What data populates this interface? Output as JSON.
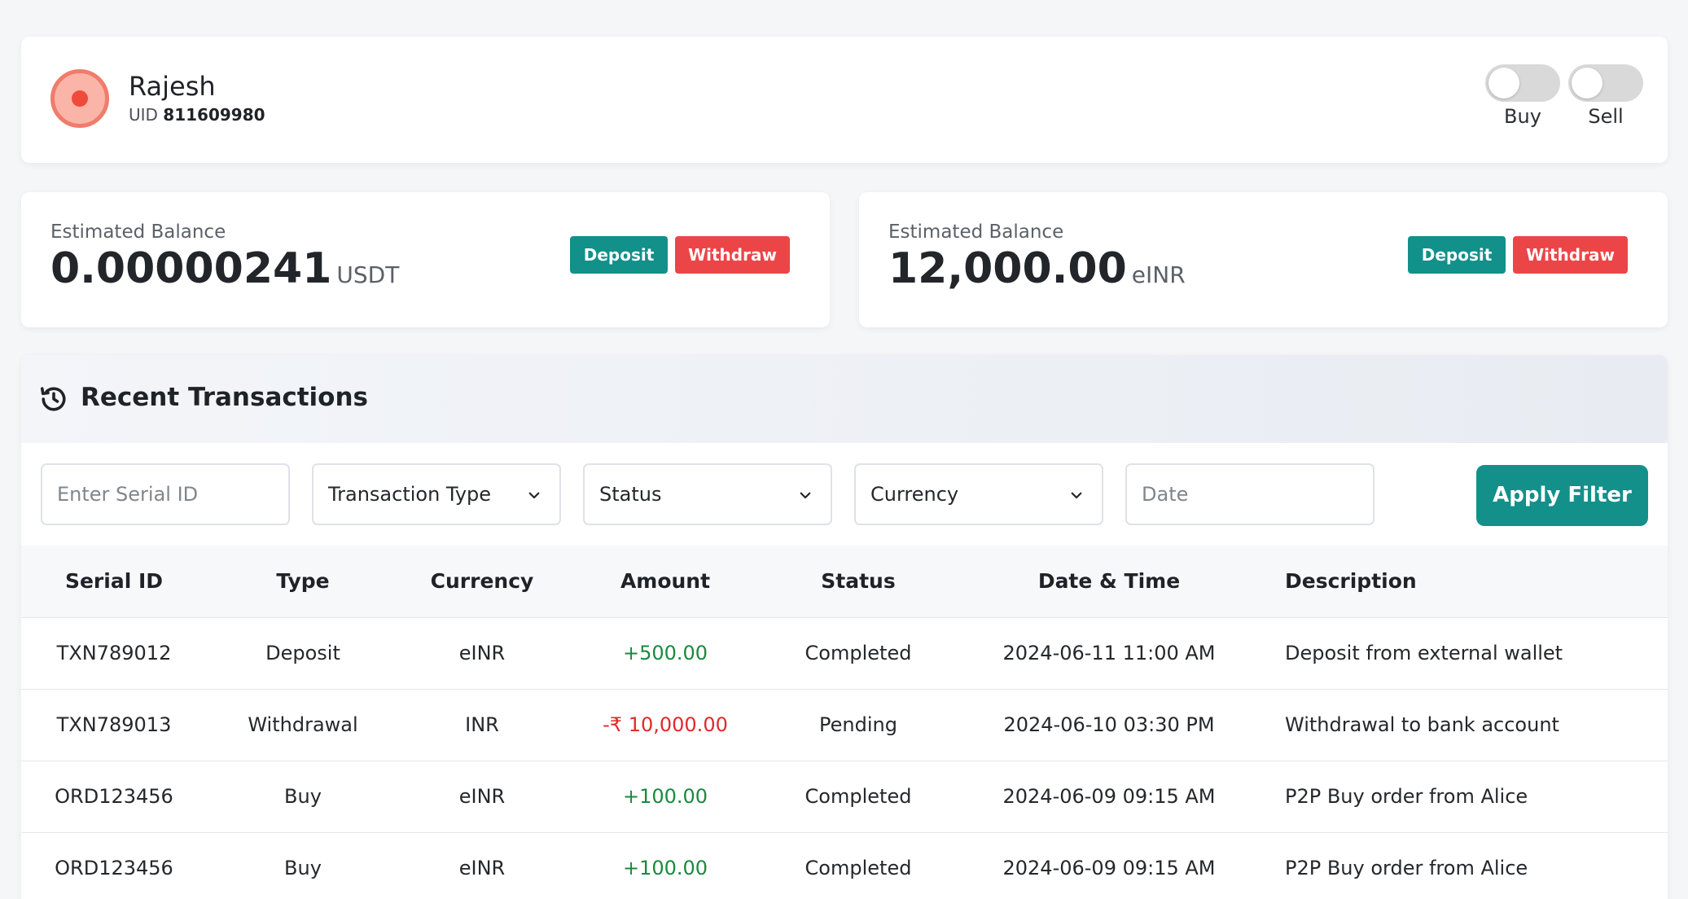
{
  "profile": {
    "name": "Rajesh",
    "uid_label": "UID",
    "uid_value": "811609980"
  },
  "toggles": {
    "buy_label": "Buy",
    "sell_label": "Sell",
    "buy_on": false,
    "sell_on": false
  },
  "balances": [
    {
      "label": "Estimated Balance",
      "value": "0.00000241",
      "unit": "USDT",
      "deposit_label": "Deposit",
      "withdraw_label": "Withdraw"
    },
    {
      "label": "Estimated Balance",
      "value": "12,000.00",
      "unit": "eINR",
      "deposit_label": "Deposit",
      "withdraw_label": "Withdraw"
    }
  ],
  "transactions": {
    "title": "Recent Transactions",
    "icon": "history-icon",
    "filters": {
      "serial_placeholder": "Enter Serial ID",
      "type_label": "Transaction Type",
      "status_label": "Status",
      "currency_label": "Currency",
      "date_placeholder": "Date",
      "apply_label": "Apply Filter"
    },
    "columns": [
      "Serial ID",
      "Type",
      "Currency",
      "Amount",
      "Status",
      "Date & Time",
      "Description"
    ],
    "rows": [
      {
        "serial": "TXN789012",
        "type": "Deposit",
        "currency": "eINR",
        "amount": "+500.00",
        "status": "Completed",
        "datetime": "2024-06-11 11:00 AM",
        "description": "Deposit from external wallet"
      },
      {
        "serial": "TXN789013",
        "type": "Withdrawal",
        "currency": "INR",
        "amount": "-₹ 10,000.00",
        "status": "Pending",
        "datetime": "2024-06-10 03:30 PM",
        "description": "Withdrawal to bank account"
      },
      {
        "serial": "ORD123456",
        "type": "Buy",
        "currency": "eINR",
        "amount": "+100.00",
        "status": "Completed",
        "datetime": "2024-06-09 09:15 AM",
        "description": "P2P Buy order from Alice"
      },
      {
        "serial": "ORD123456",
        "type": "Buy",
        "currency": "eINR",
        "amount": "+100.00",
        "status": "Completed",
        "datetime": "2024-06-09 09:15 AM",
        "description": "P2P Buy order from Alice"
      }
    ]
  },
  "colors": {
    "accent": "#13908a",
    "danger": "#ec4548",
    "positive": "#1a8a3e",
    "negative": "#e02a2a"
  }
}
